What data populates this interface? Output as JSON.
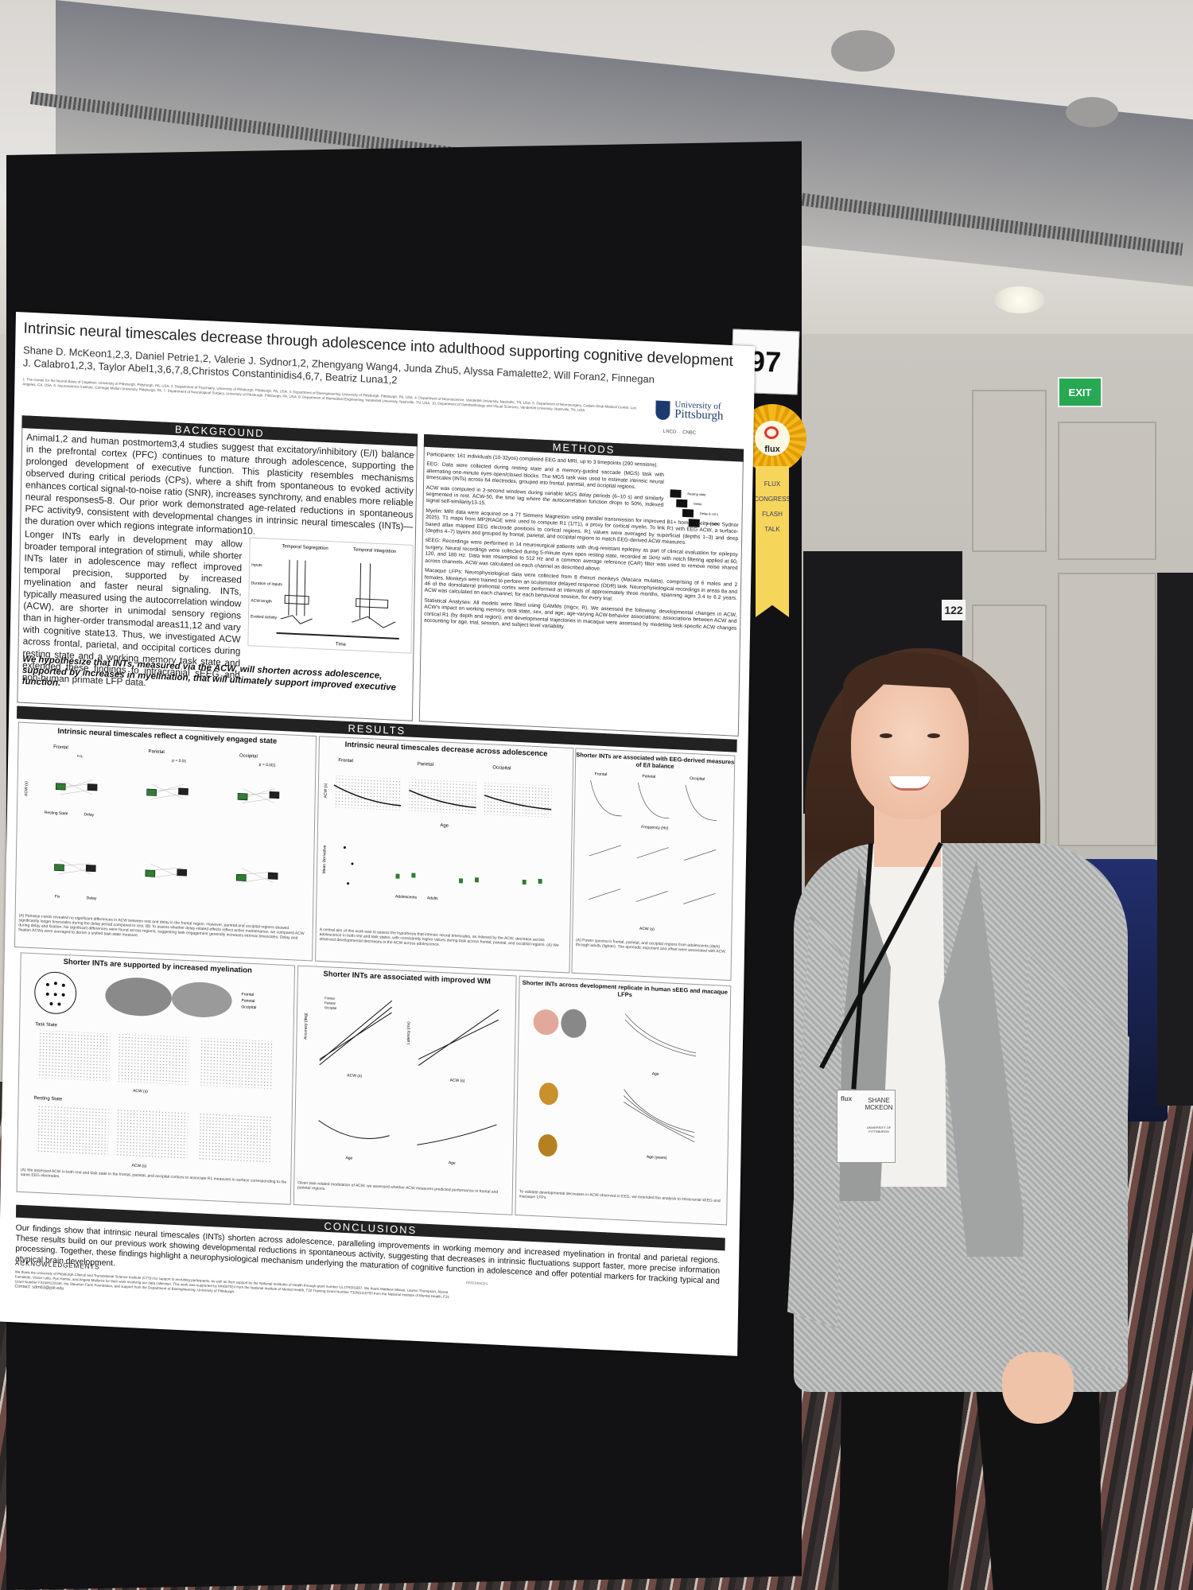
{
  "poster_number": "97",
  "board_number_right": "122",
  "exit_sign": "EXIT",
  "ribbon": {
    "label": "flux",
    "tail_lines": [
      "FLUX",
      "CONGRESS",
      "FLASH",
      "TALK"
    ]
  },
  "poster": {
    "title": "Intrinsic neural timescales decrease through adolescence into adulthood supporting cognitive development",
    "authors": "Shane D. McKeon1,2,3, Daniel Petrie1,2, Valerie J. Sydnor1,2, Zhengyang Wang4, Junda Zhu5, Alyssa Famalette2, Will Foran2, Finnegan J. Calabro1,2,3, Taylor Abel1,3,6,7,8,Christos Constantinidis4,6,7, Beatriz Luna1,2",
    "affiliations": "1. The Center for the Neural Basis of Cognition, University of Pittsburgh, Pittsburgh, PA, USA. 2. Department of Psychiatry, University of Pittsburgh, Pittsburgh, PA, USA. 3. Department of Bioengineering, University of Pittsburgh, Pittsburgh, PA, USA. 4. Department of Neuroscience, Vanderbilt University, Nashville, TN, USA. 5. Department of Neurosurgery, Cedars-Sinai Medical Center, Los Angeles, CA, USA. 6. Neuroscience Institute, Carnegie Mellon University, Pittsburgh, PA. 7. Department of Neurological Surgery, University of Pittsburgh, Pittsburgh, PA, USA. 8. Department of Biomedical Engineering, Vanderbilt University, Nashville, TN, USA. 10. Department of Ophthalmology and Visual Sciences, Vanderbilt University, Nashville, TN, USA",
    "logo": {
      "line1": "University of",
      "line2": "Pittsburgh"
    },
    "mini_logos": [
      "LNCD",
      "CNBC"
    ],
    "background": {
      "heading": "BACKGROUND",
      "p1": "Animal1,2 and human postmortem3,4 studies suggest that excitatory/inhibitory (E/I) balance in the prefrontal cortex (PFC) continues to mature through adolescence, supporting the prolonged development of executive function. This plasticity resembles mechanisms observed during critical periods (CPs), where a shift from spontaneous to evoked activity enhances cortical signal-to-noise ratio (SNR), increases synchrony, and enables more reliable neural responses5-8. Our prior work demonstrated age-related reductions in spontaneous PFC activity9, consistent with developmental changes in intrinsic neural timescales (INTs)—the duration over which regions integrate information10.",
      "p2": "Longer INTs early in development may allow broader temporal integration of stimuli, while shorter INTs later in adolescence may reflect improved temporal precision, supported by increased myelination and faster neural signaling. INTs, typically measured using the autocorrelation window (ACW), are shorter in unimodal sensory regions than in higher-order transmodal areas11,12 and vary with cognitive state13. Thus, we investigated ACW across frontal, parietal, and occipital cortices during resting state and a working memory task state and extended these findings to intracranial sEEG and non-human primate LFP data.",
      "hypothesis": "We hypothesize that INTs, measured via the ACW, will shorten across adolescence, supported by increases in myelination, that will ultimately support improved executive function.",
      "figure_labels": [
        "Temporal Segregation",
        "Temporal Integration",
        "Inputs",
        "Duration of Inputs",
        "ACW length",
        "Evoked activity",
        "Time"
      ]
    },
    "methods": {
      "heading": "METHODS",
      "participants": "Participants: 161 individuals (10-32yos) completed EEG and MRI, up to 3 timepoints (290 sessions).",
      "eeg": "EEG: Data were collected during resting state and a memory-guided saccade (MGS) task with alternating one-minute eyes-open/closed blocks. The MGS task was used to estimate intrinsic neural timescales (INTs) across 64 electrodes, grouped into frontal, parietal, and occipital regions.",
      "acw": "ACW was computed in 2-second windows during variable MGS delay periods (6–10 s) and similarly segmented in rest. ACW-50, the time lag where the autocorrelation function drops to 50%, indexed signal self-similarity13-15.",
      "myelin": "Myelin: MRI data were acquired on a 7T Siemens Magnetom using parallel transmission for improved B1+ homogeneity (see Sydnor 2025). T1 maps from MP2RAGE were used to compute R1 (1/T1), a proxy for cortical myelin. To link R1 with EEG ACW, a surface-based atlas mapped EEG electrode positions to cortical regions. R1 values were averaged by superficial (depths 1–3) and deep (depths 4–7) layers and grouped by frontal, parietal, and occipital regions to match EEG-derived ACW measures.",
      "seeg": "sEEG: Recordings were performed in 14 neurosurgical patients with drug-resistant epilepsy as part of clinical evaluation for epilepsy surgery. Neural recordings were collected during 5-minute eyes open resting state, recorded at 1kHz with notch filtering applied at 60, 120, and 180 Hz. Data was resampled to 512 Hz and a common average reference (CAR) filter was used to remove noise shared across channels. ACW was calculated on each channel as described above.",
      "macaque": "Macaque LFPs: Neurophysiological data were collected from 8 rhesus monkeys (Macaca mulatta), comprising of 6 males and 2 females. Monkeys were trained to perform an oculomotor delayed response (ODR) task. Neurophysiological recordings in areas 8a and 46 of the dorsolateral prefrontal cortex were performed at intervals of approximately three months, spanning ages 3.4 to 6.2 years. ACW was calculated on each channel, for each behavioral session, for every trial.",
      "stats": "Statistical Analyses: All models were fitted using GAMMs (mgcv, R). We assessed the following: developmental changes in ACW, ACW's impact on working memory, task state, sex, and age; age-varying ACW-behavior associations; associations between ACW and cortical R1 (by depth and region); and developmental trajectories in macaque were assessed by modeling task-specific ACW changes accounting for age, trial, session, and subject level variability.",
      "figure_labels": [
        "Resting state",
        "Delay",
        "Memory-guided saccade",
        "Delay 6–10 s",
        "Saccade"
      ]
    },
    "results": {
      "heading": "RESULTS",
      "panel1": {
        "title": "Intrinsic neural timescales reflect a cognitively engaged state",
        "labels": [
          "Frontal",
          "Parietal",
          "Occipital",
          "Resting State",
          "Delay",
          "Fix",
          "ACW (s)",
          "n.s.",
          "p = 0.01",
          "p = 0.001"
        ],
        "caption": "(A) Pairwise t-tests revealed no significant differences in ACW between rest and delay in the frontal region. However, parietal and occipital regions showed significantly longer timescales during the delay period compared to rest. (B) To assess whether delay-related effects reflect active maintenance, we compared ACW during delay and fixation. No significant differences were found across regions, suggesting task engagement generally increases intrinsic timescales. Delay and fixation ACWs were averaged to derive a unified task-state measure."
      },
      "panel2": {
        "title": "Intrinsic neural timescales decrease across adolescence",
        "labels": [
          "Frontal",
          "Parietal",
          "Occipital",
          "ACW (s)",
          "Age",
          "Resting State",
          "Task",
          "Mean Derivative",
          "Adolescents",
          "Adults"
        ],
        "caption": "A central aim of this work was to assess the hypothesis that intrinsic neural timescales, as indexed by the ACW, decrease across adolescence in both rest and task states, with consistently higher values during task across frontal, parietal, and occipital regions. (A) We observed developmental decreases in the ACW across adolescence."
      },
      "panel3": {
        "title": "Shorter INTs are associated with EEG-derived measures of E/I balance",
        "labels": [
          "Frontal",
          "Parietal",
          "Occipital",
          "Power",
          "Frequency (Hz)",
          "Aperiodic Exponent",
          "Aperiodic Offset",
          "ACW (s)"
        ],
        "caption": "(A) Power spectra in frontal, parietal, and occipital regions from adolescents (dark) through adults (lighter). The aperiodic exponent and offset were associated with ACW."
      },
      "panel4": {
        "title": "Shorter INTs are supported by increased myelination",
        "legend": [
          "Frontal",
          "Parietal",
          "Occipital"
        ],
        "labels": [
          "Task State",
          "Resting State",
          "R1 (adjusted)",
          "ACW (s)",
          "Deep",
          "Superficial"
        ],
        "caption": "(A) We assessed ACW in both rest and task state in the frontal, parietal, and occipital cortices to associate R1 measures in surface corresponding to the same EEG electrodes."
      },
      "panel5": {
        "title": "Shorter INTs are associated with improved WM",
        "labels": [
          "Accuracy (deg)",
          "Latency (ms)",
          "ACW (s)",
          "Age",
          "Frontal",
          "Parietal",
          "Occipital"
        ],
        "caption": "Given task-related modulation of ACW, we assessed whether ACW measures predicted performance in frontal and parietal regions."
      },
      "panel6": {
        "title": "Shorter INTs across development replicate in human sEEG and macaque LFPs",
        "labels": [
          "ACW (s)",
          "Age",
          "Age (years)",
          "Frontal",
          "Parietal",
          "Occipital"
        ],
        "caption": "To validate developmental decreases in ACW observed in EEG, we extended the analysis to intracranial sEEG and macaque LFPs."
      }
    },
    "conclusions": {
      "heading": "CONCLUSIONS",
      "text": "Our findings show that intrinsic neural timescales (INTs) shorten across adolescence, paralleling improvements in working memory and increased myelination in frontal and parietal regions. These results build on our previous work showing developmental reductions in spontaneous activity, suggesting that decreases in intrinsic fluctuations support faster, more precise information processing. Together, these findings highlight a neurophysiological mechanism underlying the maturation of cognitive function in adolescence and offer potential markers for tracking typical and atypical brain development."
    },
    "references_heading": "REFERENCES",
    "acknowledgements": {
      "heading": "ACKNOWLEDGEMENTS",
      "text": "We thank the University of Pittsburgh Clinical and Translational Science Institute (CTSI) for support in recruiting participants, as well as their support by the National Institutes of Health through grant number UL1TR001857. We thank Matthew Missar, Lauren Thompson, Alyssa Famalette, Vivian Lallo, Pye Hanne, and Angela Mallorca for their work involving our data collection. This work was supported by MH067924 from the National Institute of Mental Health, T32 Training Grant Number T32NS115705 from the National Institute of Mental Health, F31 Grant Number F31MH132246, the Staunton Farm Foundation, and support from the Department of Bioengineering, University of Pittsburgh.",
      "contact": "Contact: sdm63@pitt.edu"
    }
  },
  "badge": {
    "org": "flux",
    "name": "SHANE MCKEON",
    "affiliation": "UNIVERSITY OF PITTSBURGH"
  }
}
